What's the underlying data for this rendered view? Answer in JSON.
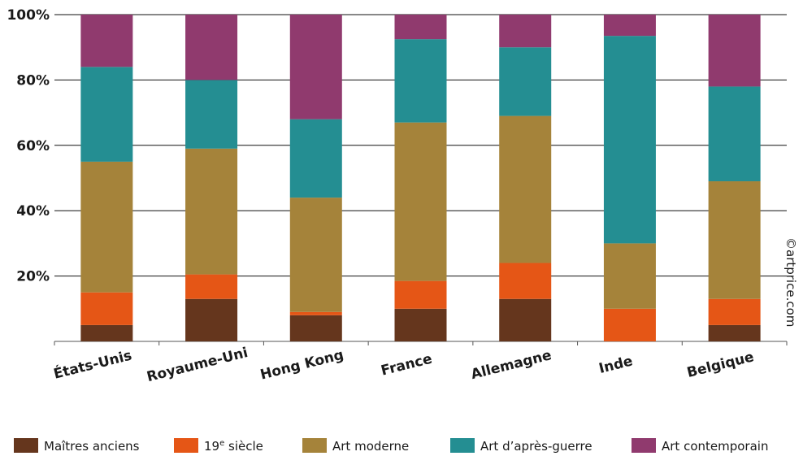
{
  "credit": "©artprice.com",
  "chart_data": {
    "type": "bar",
    "stacked": true,
    "categories": [
      "États-Unis",
      "Royaume-Uni",
      "Hong Kong",
      "France",
      "Allemagne",
      "Inde",
      "Belgique"
    ],
    "ylim": [
      0,
      100
    ],
    "yticks": [
      20,
      40,
      60,
      80,
      100
    ],
    "ytick_labels": [
      "20%",
      "40%",
      "60%",
      "80%",
      "100%"
    ],
    "grid": true,
    "legend_position": "bottom",
    "series": [
      {
        "name": "Maîtres anciens",
        "color": "#65361d",
        "values": [
          5,
          13,
          8,
          10,
          13,
          0,
          5
        ]
      },
      {
        "name": "19e siècle",
        "label_main": "19",
        "label_sup": "e",
        "label_rest": " siècle",
        "color": "#e55616",
        "values": [
          10,
          7.5,
          1,
          8.5,
          11,
          10,
          8
        ]
      },
      {
        "name": "Art moderne",
        "color": "#a5833a",
        "values": [
          40,
          38.5,
          35,
          48.5,
          45,
          20,
          36
        ]
      },
      {
        "name": "Art d’après-guerre",
        "color": "#248e92",
        "values": [
          29,
          21,
          24,
          25.5,
          21,
          63.5,
          29
        ]
      },
      {
        "name": "Art contemporain",
        "color": "#903a6e",
        "values": [
          16,
          20,
          32,
          7.5,
          10,
          6.5,
          22
        ]
      }
    ]
  }
}
